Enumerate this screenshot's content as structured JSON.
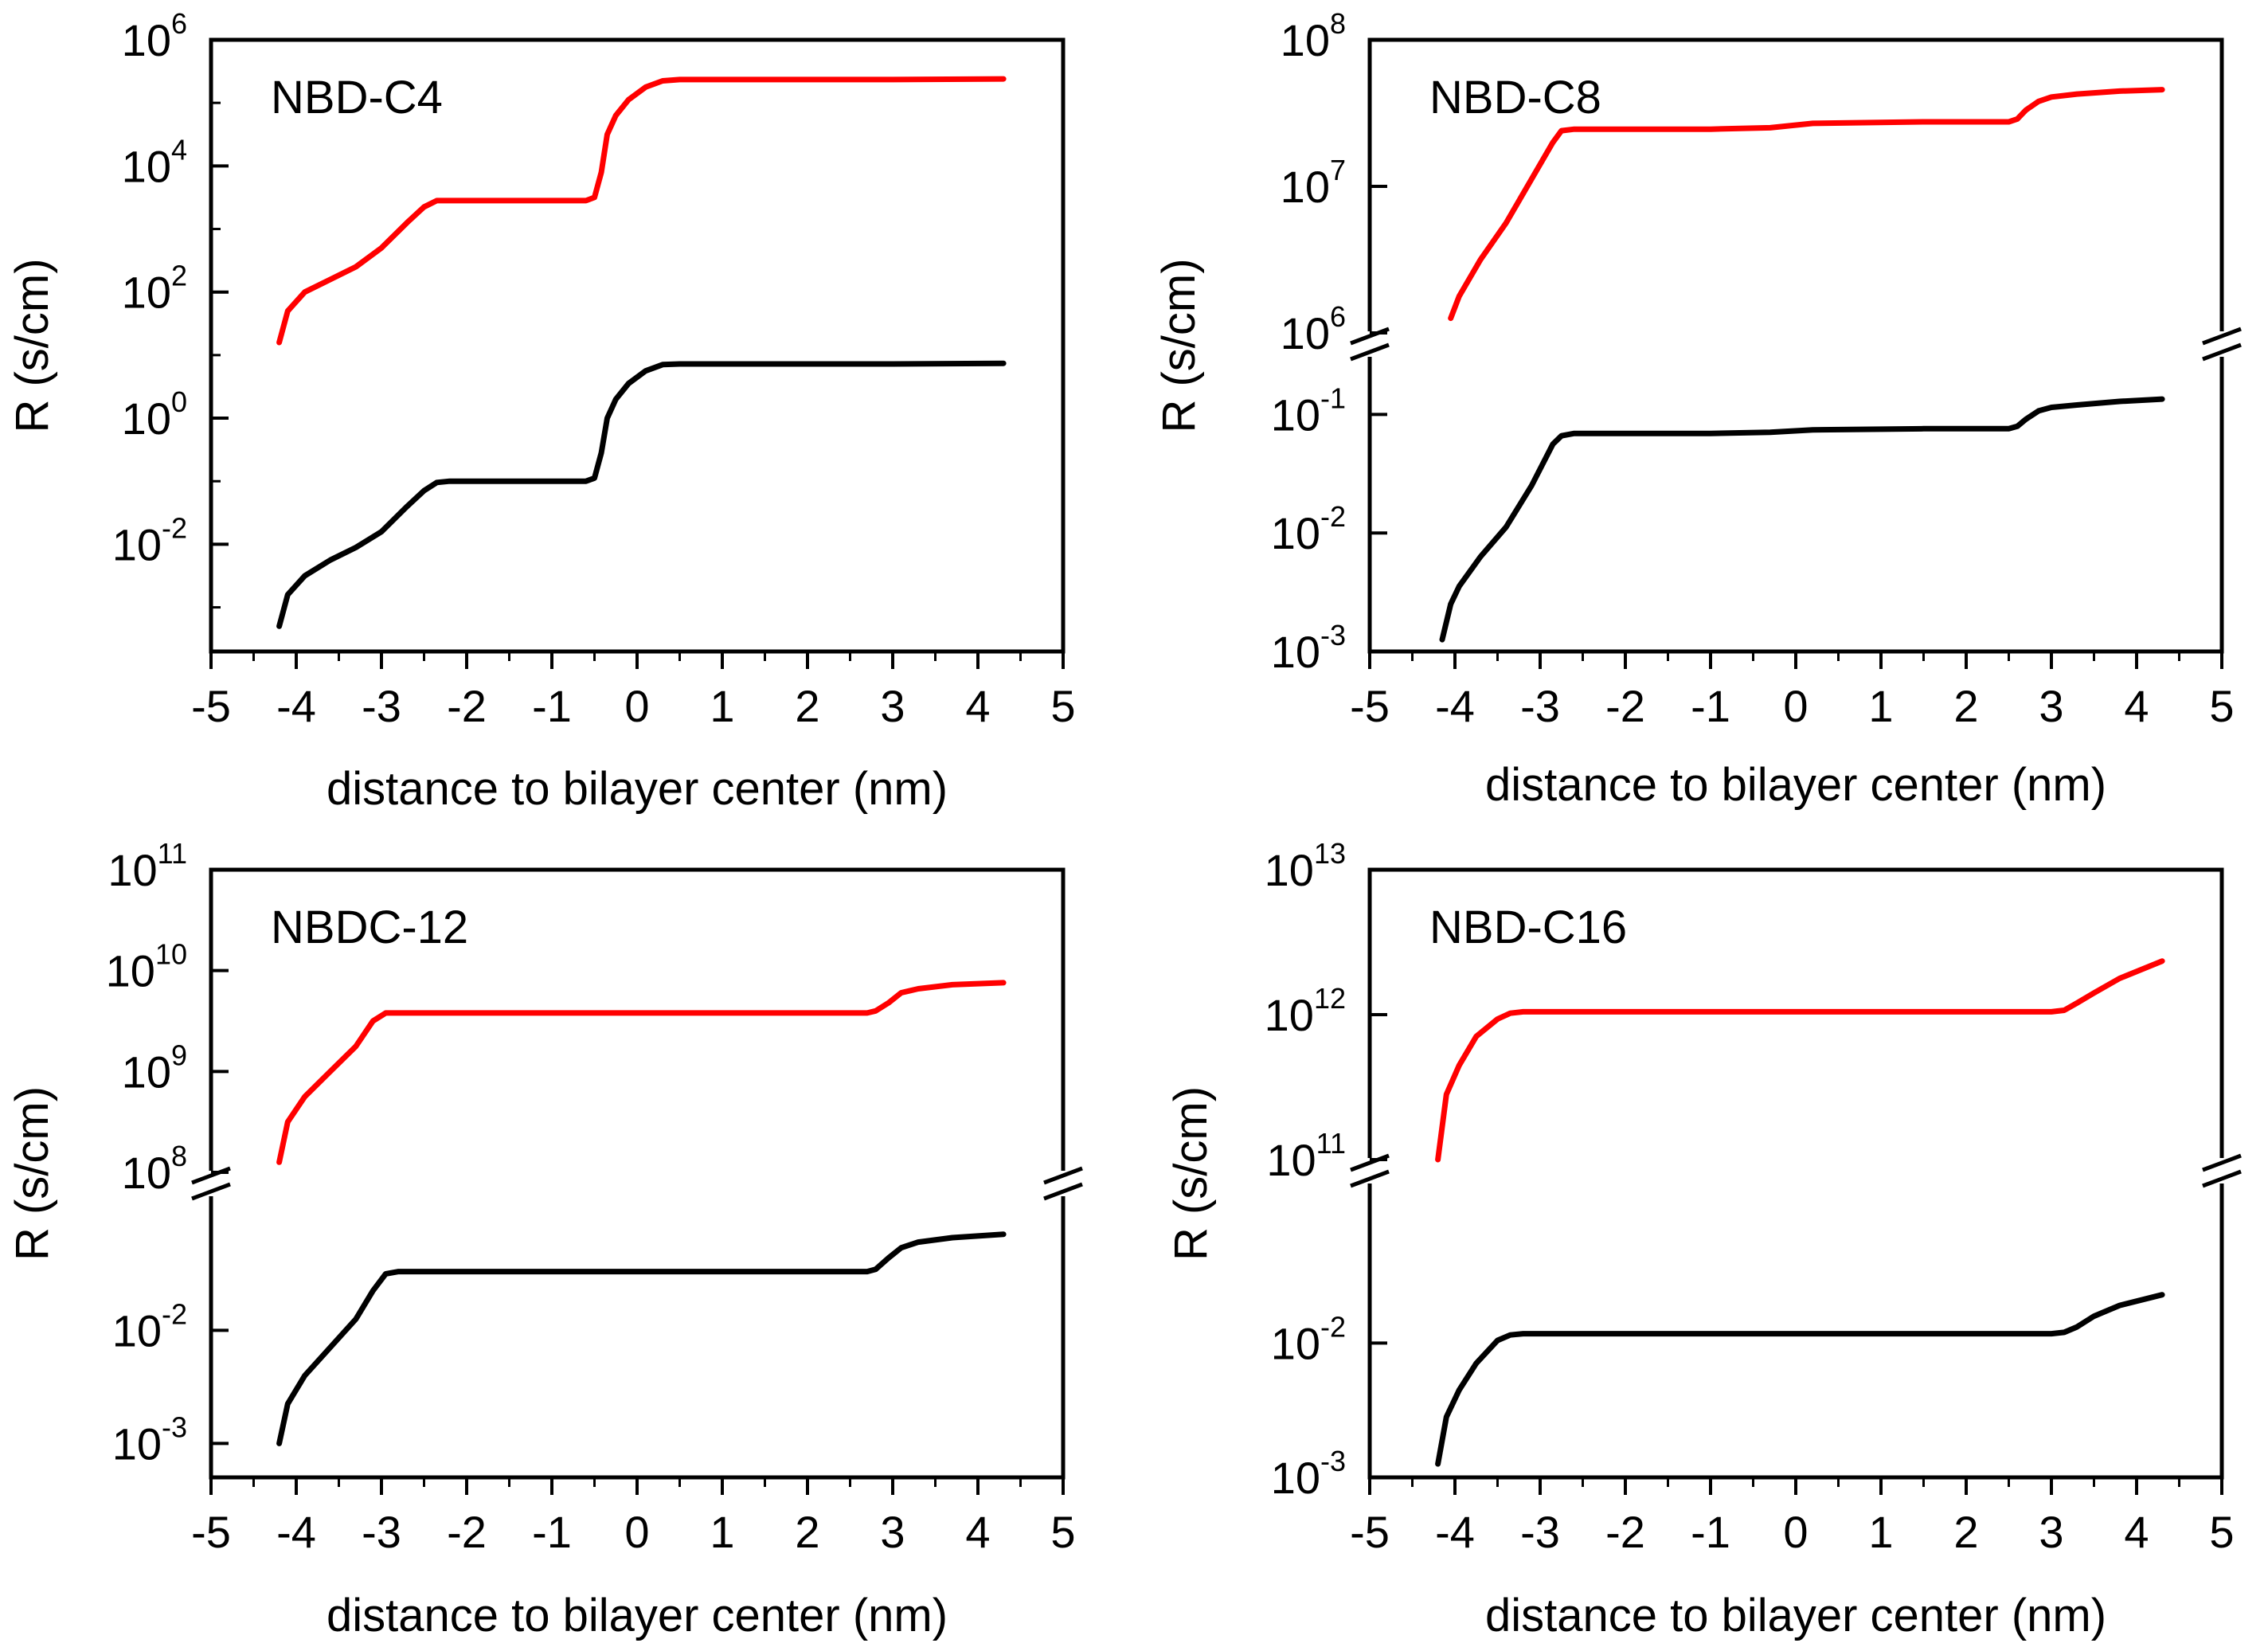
{
  "figure": {
    "colors": {
      "axis": "#000000",
      "red_series": "#ff0000",
      "black_series": "#000000"
    }
  },
  "chart_data": [
    {
      "type": "line",
      "title": "NBD-C4",
      "xlabel": "distance to bilayer center (nm)",
      "ylabel": "R (s/cm)",
      "xlim": [
        -5,
        5
      ],
      "xticks": [
        "-5",
        "-4",
        "-3",
        "-2",
        "-1",
        "0",
        "1",
        "2",
        "3",
        "4",
        "5"
      ],
      "yscale": "log",
      "broken_axis": false,
      "ylim_log10": [
        -3.7,
        6
      ],
      "ytick_labels": [
        {
          "base": "10",
          "exp": "6",
          "log10": 6
        },
        {
          "base": "10",
          "exp": "4",
          "log10": 4
        },
        {
          "base": "10",
          "exp": "2",
          "log10": 2
        },
        {
          "base": "10",
          "exp": "0",
          "log10": 0
        },
        {
          "base": "10",
          "exp": "-2",
          "log10": -2
        }
      ],
      "series": [
        {
          "name": "upper (red)",
          "color": "#ff0000",
          "x": [
            -4.2,
            -4.1,
            -3.9,
            -3.6,
            -3.3,
            -3.0,
            -2.7,
            -2.5,
            -2.35,
            -2.2,
            -1.5,
            -0.6,
            -0.5,
            -0.42,
            -0.35,
            -0.25,
            -0.1,
            0.1,
            0.3,
            0.5,
            1.5,
            3.0,
            4.3
          ],
          "log10R": [
            1.2,
            1.7,
            2.0,
            2.2,
            2.4,
            2.7,
            3.1,
            3.35,
            3.45,
            3.45,
            3.45,
            3.45,
            3.5,
            3.9,
            4.5,
            4.8,
            5.05,
            5.25,
            5.35,
            5.37,
            5.37,
            5.37,
            5.38
          ]
        },
        {
          "name": "lower (black)",
          "color": "#000000",
          "x": [
            -4.2,
            -4.1,
            -3.9,
            -3.6,
            -3.3,
            -3.0,
            -2.7,
            -2.5,
            -2.35,
            -2.2,
            -1.5,
            -0.6,
            -0.5,
            -0.42,
            -0.35,
            -0.25,
            -0.1,
            0.1,
            0.3,
            0.5,
            1.5,
            3.0,
            4.3
          ],
          "log10R": [
            -3.3,
            -2.8,
            -2.5,
            -2.25,
            -2.05,
            -1.8,
            -1.4,
            -1.15,
            -1.02,
            -1.0,
            -1.0,
            -1.0,
            -0.95,
            -0.55,
            0.0,
            0.3,
            0.55,
            0.75,
            0.85,
            0.86,
            0.86,
            0.86,
            0.87
          ]
        }
      ]
    },
    {
      "type": "line",
      "title": "NBD-C8",
      "xlabel": "distance to bilayer center (nm)",
      "ylabel": "R (s/cm)",
      "xlim": [
        -5,
        5
      ],
      "xticks": [
        "-5",
        "-4",
        "-3",
        "-2",
        "-1",
        "0",
        "1",
        "2",
        "3",
        "4",
        "5"
      ],
      "yscale": "log",
      "broken_axis": true,
      "upper_ylim_log10": [
        6,
        8
      ],
      "lower_ylim_log10": [
        -3,
        -0.5
      ],
      "upper_ytick_labels": [
        {
          "base": "10",
          "exp": "8",
          "log10": 8
        },
        {
          "base": "10",
          "exp": "7",
          "log10": 7
        },
        {
          "base": "10",
          "exp": "6",
          "log10": 6
        }
      ],
      "lower_ytick_labels": [
        {
          "base": "10",
          "exp": "-1",
          "log10": -1
        },
        {
          "base": "10",
          "exp": "-2",
          "log10": -2
        },
        {
          "base": "10",
          "exp": "-3",
          "log10": -3
        }
      ],
      "series": [
        {
          "name": "upper (red)",
          "color": "#ff0000",
          "panel": "upper",
          "x": [
            -4.05,
            -3.95,
            -3.7,
            -3.4,
            -3.1,
            -2.85,
            -2.75,
            -2.6,
            -1.0,
            -0.3,
            0.2,
            1.5,
            2.5,
            2.6,
            2.7,
            2.85,
            3.0,
            3.3,
            3.8,
            4.3
          ],
          "log10R": [
            6.1,
            6.25,
            6.5,
            6.75,
            7.05,
            7.3,
            7.38,
            7.39,
            7.39,
            7.4,
            7.43,
            7.44,
            7.44,
            7.46,
            7.52,
            7.58,
            7.61,
            7.63,
            7.65,
            7.66
          ]
        },
        {
          "name": "lower (black)",
          "color": "#000000",
          "panel": "lower",
          "x": [
            -4.15,
            -4.05,
            -3.95,
            -3.7,
            -3.4,
            -3.1,
            -2.85,
            -2.75,
            -2.6,
            -1.0,
            -0.3,
            0.2,
            1.5,
            2.5,
            2.6,
            2.7,
            2.85,
            3.0,
            3.3,
            3.8,
            4.3
          ],
          "log10R": [
            -2.9,
            -2.6,
            -2.45,
            -2.2,
            -1.95,
            -1.6,
            -1.25,
            -1.18,
            -1.16,
            -1.16,
            -1.15,
            -1.13,
            -1.12,
            -1.12,
            -1.1,
            -1.04,
            -0.97,
            -0.94,
            -0.92,
            -0.89,
            -0.87
          ]
        }
      ]
    },
    {
      "type": "line",
      "title": "NBDC-12",
      "xlabel": "distance to bilayer center (nm)",
      "ylabel": "R (s/cm)",
      "xlim": [
        -5,
        5
      ],
      "xticks": [
        "-5",
        "-4",
        "-3",
        "-2",
        "-1",
        "0",
        "1",
        "2",
        "3",
        "4",
        "5"
      ],
      "yscale": "log",
      "broken_axis": true,
      "upper_ylim_log10": [
        8,
        11
      ],
      "lower_ylim_log10": [
        -3.3,
        -0.8
      ],
      "upper_ytick_labels": [
        {
          "base": "10",
          "exp": "11",
          "log10": 11
        },
        {
          "base": "10",
          "exp": "10",
          "log10": 10
        },
        {
          "base": "10",
          "exp": "9",
          "log10": 9
        },
        {
          "base": "10",
          "exp": "8",
          "log10": 8
        }
      ],
      "lower_ytick_labels": [
        {
          "base": "10",
          "exp": "-2",
          "log10": -2
        },
        {
          "base": "10",
          "exp": "-3",
          "log10": -3
        }
      ],
      "series": [
        {
          "name": "upper (red)",
          "color": "#ff0000",
          "panel": "upper",
          "x": [
            -4.2,
            -4.1,
            -3.9,
            -3.6,
            -3.3,
            -3.1,
            -2.95,
            -2.8,
            -1.0,
            1.0,
            2.7,
            2.8,
            2.95,
            3.1,
            3.3,
            3.7,
            4.3
          ],
          "log10R": [
            8.1,
            8.5,
            8.75,
            9.0,
            9.25,
            9.5,
            9.58,
            9.58,
            9.58,
            9.58,
            9.58,
            9.6,
            9.68,
            9.78,
            9.82,
            9.86,
            9.88
          ]
        },
        {
          "name": "lower (black)",
          "color": "#000000",
          "panel": "lower",
          "x": [
            -4.2,
            -4.1,
            -3.9,
            -3.6,
            -3.3,
            -3.1,
            -2.95,
            -2.8,
            -1.0,
            1.0,
            2.7,
            2.8,
            2.95,
            3.1,
            3.3,
            3.7,
            4.3
          ],
          "log10R": [
            -3.0,
            -2.65,
            -2.4,
            -2.15,
            -1.9,
            -1.65,
            -1.5,
            -1.48,
            -1.48,
            -1.48,
            -1.48,
            -1.46,
            -1.36,
            -1.27,
            -1.22,
            -1.18,
            -1.15
          ]
        }
      ]
    },
    {
      "type": "line",
      "title": "NBD-C16",
      "xlabel": "distance to bilayer center (nm)",
      "ylabel": "R (s/cm)",
      "xlim": [
        -5,
        5
      ],
      "xticks": [
        "-5",
        "-4",
        "-3",
        "-2",
        "-1",
        "0",
        "1",
        "2",
        "3",
        "4",
        "5"
      ],
      "yscale": "log",
      "broken_axis": true,
      "upper_ylim_log10": [
        11,
        13
      ],
      "lower_ylim_log10": [
        -3,
        -0.8
      ],
      "upper_ytick_labels": [
        {
          "base": "10",
          "exp": "13",
          "log10": 13
        },
        {
          "base": "10",
          "exp": "12",
          "log10": 12
        },
        {
          "base": "10",
          "exp": "11",
          "log10": 11
        }
      ],
      "lower_ytick_labels": [
        {
          "base": "10",
          "exp": "-2",
          "log10": -2
        },
        {
          "base": "10",
          "exp": "-3",
          "log10": -3
        }
      ],
      "series": [
        {
          "name": "upper (red)",
          "color": "#ff0000",
          "panel": "upper",
          "x": [
            -4.2,
            -4.1,
            -3.95,
            -3.75,
            -3.5,
            -3.35,
            -3.2,
            -1.0,
            1.0,
            3.0,
            3.15,
            3.3,
            3.5,
            3.8,
            4.3
          ],
          "log10R": [
            11.0,
            11.45,
            11.65,
            11.85,
            11.97,
            12.01,
            12.02,
            12.02,
            12.02,
            12.02,
            12.03,
            12.08,
            12.15,
            12.25,
            12.37
          ]
        },
        {
          "name": "lower (black)",
          "color": "#000000",
          "panel": "lower",
          "x": [
            -4.2,
            -4.1,
            -3.95,
            -3.75,
            -3.5,
            -3.35,
            -3.2,
            -1.0,
            1.0,
            3.0,
            3.15,
            3.3,
            3.5,
            3.8,
            4.3
          ],
          "log10R": [
            -2.9,
            -2.55,
            -2.35,
            -2.15,
            -1.98,
            -1.94,
            -1.93,
            -1.93,
            -1.93,
            -1.93,
            -1.92,
            -1.88,
            -1.8,
            -1.72,
            -1.64
          ]
        }
      ]
    }
  ]
}
